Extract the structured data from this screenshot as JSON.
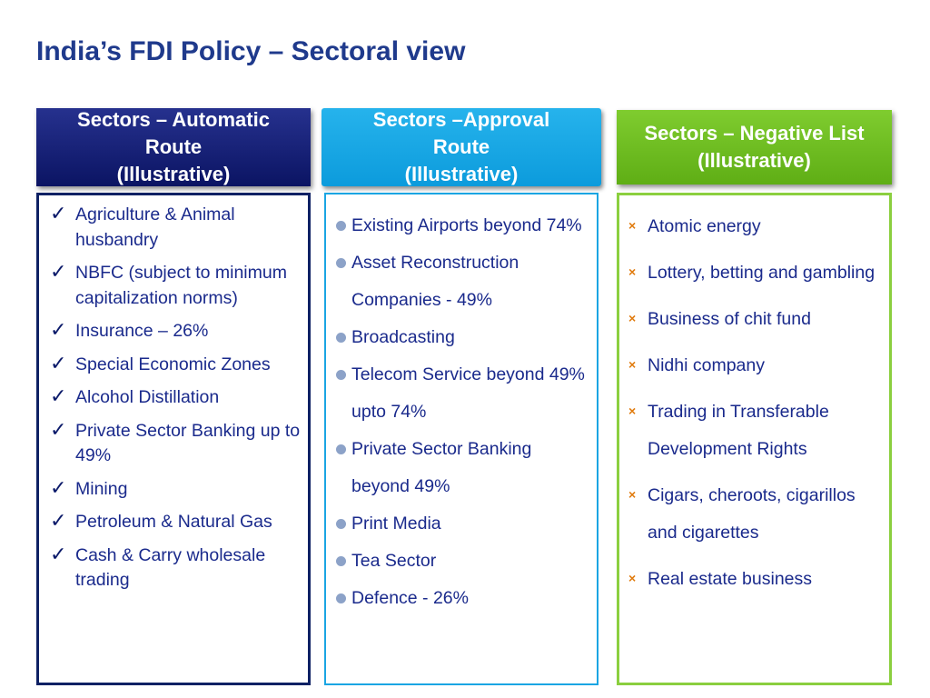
{
  "title": "India’s FDI Policy – Sectoral view",
  "columns": [
    {
      "header_lines": [
        "Sectors – Automatic",
        "Route",
        "(Illustrative)"
      ],
      "items": [
        "Agriculture & Animal husbandry",
        "NBFC (subject to minimum capitalization norms)",
        "Insurance – 26%",
        "Special Economic Zones",
        "Alcohol Distillation",
        "Private Sector Banking up to 49%",
        "Mining",
        "Petroleum & Natural Gas",
        "Cash & Carry wholesale trading"
      ],
      "bullet": "✓"
    },
    {
      "header_lines": [
        "Sectors –Approval",
        "Route",
        "(Illustrative)"
      ],
      "items": [
        "Existing Airports beyond 74%",
        "Asset Reconstruction Companies - 49%",
        "Broadcasting",
        "Telecom Service beyond 49% upto 74%",
        "Private Sector Banking beyond 49%",
        "Print Media",
        "Tea Sector",
        "Defence - 26%"
      ]
    },
    {
      "header_lines": [
        "Sectors – Negative List",
        "(Illustrative)"
      ],
      "items": [
        "Atomic energy",
        "Lottery, betting and gambling",
        "Business of chit fund",
        "Nidhi company",
        "Trading in Transferable Development Rights",
        "Cigars, cheroots, cigarillos and  cigarettes",
        "Real estate business"
      ],
      "bullet": "×"
    }
  ],
  "colors": {
    "title": "#1f3a8c",
    "automatic": "#0b1463",
    "approval": "#0c9bdc",
    "negative": "#5fae15",
    "item_text": "#1a2a8c",
    "cross": "#e07a0c"
  }
}
